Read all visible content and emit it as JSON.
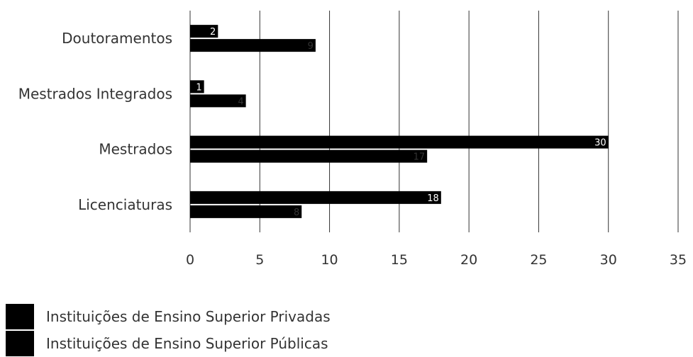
{
  "chart_data": {
    "type": "bar",
    "orientation": "horizontal",
    "categories": [
      "Doutoramentos",
      "Mestrados Integrados",
      "Mestrados",
      "Licenciaturas"
    ],
    "series": [
      {
        "name": "Instituições de Ensino Superior Privadas",
        "values": [
          2,
          1,
          30,
          18
        ],
        "color": "#000000",
        "label_color": "#ffffff"
      },
      {
        "name": "Instituições de Ensino Superior Públicas",
        "values": [
          9,
          4,
          17,
          8
        ],
        "color": "#000000",
        "label_color": "#333333"
      }
    ],
    "xlim": [
      0,
      35
    ],
    "xticks": [
      "0",
      "5",
      "10",
      "15",
      "20",
      "25",
      "30",
      "35"
    ],
    "grid": true,
    "legend_position": "bottom-left",
    "title": "",
    "xlabel": "",
    "ylabel": ""
  }
}
